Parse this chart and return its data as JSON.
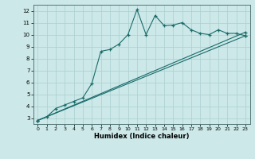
{
  "xlabel": "Humidex (Indice chaleur)",
  "xlim": [
    -0.5,
    23.5
  ],
  "ylim": [
    2.5,
    12.5
  ],
  "xticks": [
    0,
    1,
    2,
    3,
    4,
    5,
    6,
    7,
    8,
    9,
    10,
    11,
    12,
    13,
    14,
    15,
    16,
    17,
    18,
    19,
    20,
    21,
    22,
    23
  ],
  "yticks": [
    3,
    4,
    5,
    6,
    7,
    8,
    9,
    10,
    11,
    12
  ],
  "bg_color": "#cce8e8",
  "line_color": "#1a6b6b",
  "grid_color": "#aacfcf",
  "series": [
    {
      "x": [
        0,
        1,
        2,
        3,
        4,
        5,
        6,
        7,
        8,
        9,
        10,
        11,
        12,
        13,
        14,
        15,
        16,
        17,
        18,
        19,
        20,
        21,
        22,
        23
      ],
      "y": [
        2.8,
        3.1,
        3.8,
        4.1,
        4.4,
        4.7,
        5.9,
        8.6,
        8.75,
        9.2,
        10.0,
        12.1,
        10.0,
        11.6,
        10.75,
        10.8,
        11.0,
        10.4,
        10.1,
        10.0,
        10.4,
        10.1,
        10.1,
        9.9
      ]
    },
    {
      "x": [
        0,
        23
      ],
      "y": [
        2.8,
        10.2
      ]
    },
    {
      "x": [
        0,
        23
      ],
      "y": [
        2.8,
        9.9
      ]
    }
  ]
}
